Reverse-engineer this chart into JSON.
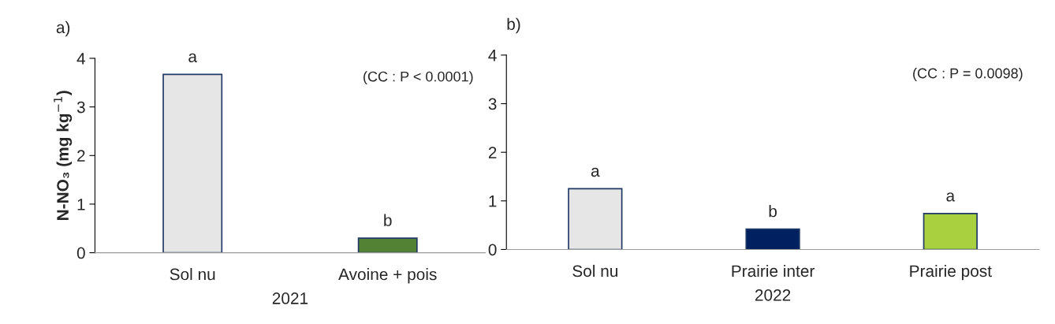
{
  "chart_data": [
    {
      "type": "bar",
      "title": "a)",
      "xlabel": "2021",
      "ylabel": "N-NO₃ (mg kg$^{−1}$)",
      "categories": [
        "Sol nu",
        "Avoine + pois"
      ],
      "values": [
        3.67,
        0.3
      ],
      "colors": [
        "#e7e6e6",
        "#548235"
      ],
      "ylim": [
        0,
        4
      ],
      "yticks": [
        0,
        1,
        2,
        3,
        4
      ],
      "annotations": [
        {
          "text": "a",
          "x": "Sol nu",
          "y": 3.67
        },
        {
          "text": "b",
          "x": "Avoine + pois",
          "y": 0.3
        },
        "(CC : P < 0.0001)"
      ]
    },
    {
      "type": "bar",
      "title": "b)",
      "xlabel": "2022",
      "categories": [
        "Sol nu",
        "Prairie inter",
        "Prairie post"
      ],
      "values": [
        1.25,
        0.42,
        0.74
      ],
      "colors": [
        "#e7e6e6",
        "#002060",
        "#a9d03f"
      ],
      "ylim": [
        0,
        4
      ],
      "yticks": [
        0,
        1,
        2,
        3,
        4
      ],
      "annotations": [
        {
          "text": "a",
          "x": "Sol nu",
          "y": 1.25
        },
        {
          "text": "b",
          "x": "Prairie inter",
          "y": 0.42
        },
        {
          "text": "a",
          "x": "Prairie post",
          "y": 0.74
        },
        "(CC : P = 0.0098)"
      ]
    }
  ]
}
